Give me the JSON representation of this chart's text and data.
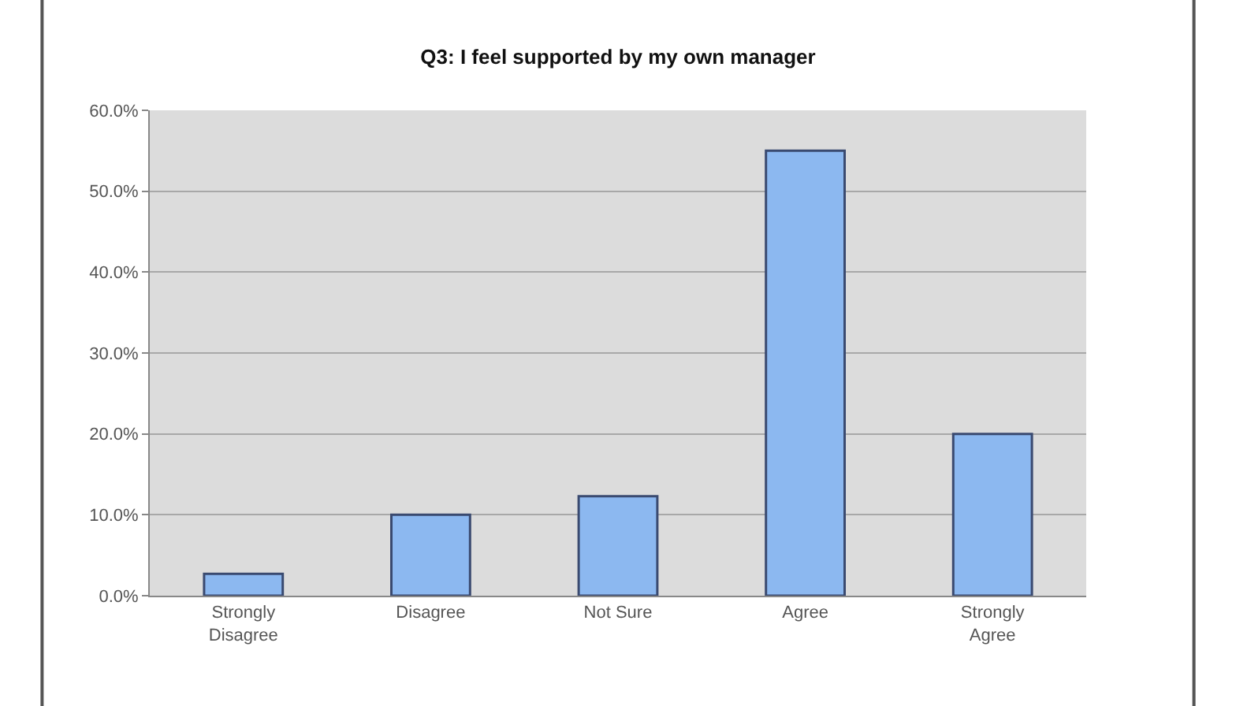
{
  "chart_data": {
    "type": "bar",
    "title": "Q3: I feel supported by my own manager",
    "categories": [
      "Strongly Disagree",
      "Disagree",
      "Not Sure",
      "Agree",
      "Strongly Agree"
    ],
    "values": [
      2.7,
      10,
      12.3,
      55,
      20
    ],
    "color": "#8cb8f0",
    "ylim": [
      0,
      60
    ],
    "yticks": [
      {
        "value": 0,
        "label": "0.0%"
      },
      {
        "value": 10,
        "label": "10.0%"
      },
      {
        "value": 20,
        "label": "20.0%"
      },
      {
        "value": 30,
        "label": "30.0%"
      },
      {
        "value": 40,
        "label": "40.0%"
      },
      {
        "value": 50,
        "label": "50.0%"
      },
      {
        "value": 60,
        "label": "60.0%"
      }
    ],
    "grid": "y",
    "legend": false
  }
}
